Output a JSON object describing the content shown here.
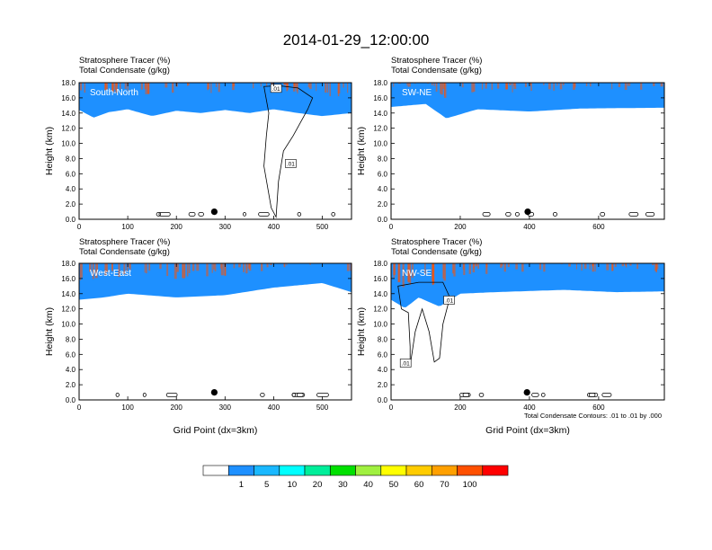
{
  "figure": {
    "title": "2014-01-29_12:00:00",
    "field_label_1": "Stratosphere Tracer   (%)",
    "field_label_2": "Total Condensate   (g/kg)",
    "contour_note": "Total Condensate Contours: .01 to .01 by .000"
  },
  "colorbar": {
    "colors": [
      "#ffffff",
      "#1e90ff",
      "#1ab8ff",
      "#00ffff",
      "#00ee9a",
      "#00e000",
      "#a0f040",
      "#ffff00",
      "#ffcc00",
      "#ffa000",
      "#ff5000",
      "#ff0000"
    ],
    "labels": [
      "1",
      "5",
      "10",
      "20",
      "30",
      "40",
      "50",
      "60",
      "70",
      "100"
    ]
  },
  "chart_data": [
    {
      "type": "heatmap",
      "panel": "South-North",
      "xlabel": "",
      "ylabel": "Height (km)",
      "xlim": [
        0,
        560
      ],
      "ylim": [
        0,
        18
      ],
      "x_ticks": [
        "0",
        "100",
        "200",
        "300",
        "400",
        "500"
      ],
      "y_ticks": [
        "0.0",
        "2.0",
        "4.0",
        "6.0",
        "8.0",
        "10.0",
        "12.0",
        "14.0",
        "16.0",
        "18.0"
      ],
      "tropopause": [
        [
          0,
          14.4
        ],
        [
          30,
          13.4
        ],
        [
          60,
          14.1
        ],
        [
          100,
          14.5
        ],
        [
          150,
          13.6
        ],
        [
          200,
          14.3
        ],
        [
          250,
          14.0
        ],
        [
          300,
          14.4
        ],
        [
          350,
          14.0
        ],
        [
          400,
          14.5
        ],
        [
          450,
          14.0
        ],
        [
          500,
          13.6
        ],
        [
          560,
          14.0
        ]
      ],
      "contour_labels": [
        {
          "text": ".01",
          "x": 405,
          "y": 17.2
        },
        {
          "text": ".01",
          "x": 435,
          "y": 7.3
        }
      ],
      "marker": {
        "x": 278,
        "y": 1.0
      }
    },
    {
      "type": "heatmap",
      "panel": "SW-NE",
      "xlabel": "",
      "ylabel": "Height (km)",
      "xlim": [
        0,
        790
      ],
      "ylim": [
        0,
        18
      ],
      "x_ticks": [
        "0",
        "200",
        "400",
        "600"
      ],
      "y_ticks": [
        "0.0",
        "2.0",
        "4.0",
        "6.0",
        "8.0",
        "10.0",
        "12.0",
        "14.0",
        "16.0",
        "18.0"
      ],
      "tropopause": [
        [
          0,
          14.8
        ],
        [
          100,
          15.2
        ],
        [
          160,
          13.3
        ],
        [
          250,
          14.5
        ],
        [
          400,
          14.2
        ],
        [
          550,
          14.6
        ],
        [
          790,
          14.7
        ]
      ],
      "contour_labels": [],
      "marker": {
        "x": 395,
        "y": 1.0
      }
    },
    {
      "type": "heatmap",
      "panel": "West-East",
      "xlabel": "Grid Point (dx=3km)",
      "ylabel": "Height (km)",
      "xlim": [
        0,
        560
      ],
      "ylim": [
        0,
        18
      ],
      "x_ticks": [
        "0",
        "100",
        "200",
        "300",
        "400",
        "500"
      ],
      "y_ticks": [
        "0.0",
        "2.0",
        "4.0",
        "6.0",
        "8.0",
        "10.0",
        "12.0",
        "14.0",
        "16.0",
        "18.0"
      ],
      "tropopause": [
        [
          0,
          13.2
        ],
        [
          50,
          13.5
        ],
        [
          100,
          14.0
        ],
        [
          200,
          13.5
        ],
        [
          300,
          13.8
        ],
        [
          400,
          14.8
        ],
        [
          500,
          15.4
        ],
        [
          560,
          14.2
        ]
      ],
      "contour_labels": [],
      "marker": {
        "x": 278,
        "y": 1.0
      }
    },
    {
      "type": "heatmap",
      "panel": "NW-SE",
      "xlabel": "Grid Point (dx=3km)",
      "ylabel": "Height (km)",
      "xlim": [
        0,
        790
      ],
      "ylim": [
        0,
        18
      ],
      "x_ticks": [
        "0",
        "200",
        "400",
        "600"
      ],
      "y_ticks": [
        "0.0",
        "2.0",
        "4.0",
        "6.0",
        "8.0",
        "10.0",
        "12.0",
        "14.0",
        "16.0",
        "18.0"
      ],
      "tropopause": [
        [
          0,
          13.2
        ],
        [
          40,
          12.1
        ],
        [
          80,
          13.5
        ],
        [
          140,
          12.3
        ],
        [
          200,
          14.0
        ],
        [
          300,
          14.2
        ],
        [
          500,
          14.5
        ],
        [
          650,
          14.2
        ],
        [
          790,
          14.3
        ]
      ],
      "contour_labels": [
        {
          "text": ".01",
          "x": 42,
          "y": 4.8
        },
        {
          "text": ".01",
          "x": 168,
          "y": 13.1
        }
      ],
      "marker": {
        "x": 393,
        "y": 1.0
      }
    }
  ]
}
